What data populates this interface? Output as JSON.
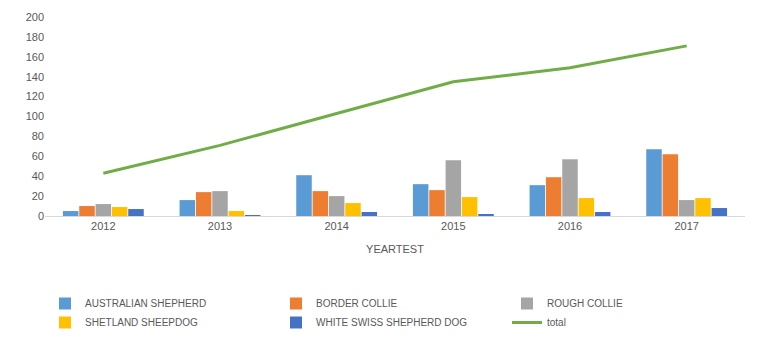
{
  "chart_data": {
    "type": "bar",
    "x_label": "YEARTEST",
    "categories": [
      "2012",
      "2013",
      "2014",
      "2015",
      "2016",
      "2017"
    ],
    "series": [
      {
        "name": "AUSTRALIAN SHEPHERD",
        "type": "bar",
        "color": "#5B9BD5",
        "values": [
          5,
          16,
          41,
          32,
          31,
          67
        ]
      },
      {
        "name": "BORDER COLLIE",
        "type": "bar",
        "color": "#ED7D31",
        "values": [
          10,
          24,
          25,
          26,
          39,
          62
        ]
      },
      {
        "name": "ROUGH COLLIE",
        "type": "bar",
        "color": "#A5A5A5",
        "values": [
          12,
          25,
          20,
          56,
          57,
          16
        ]
      },
      {
        "name": "SHETLAND SHEEPDOG",
        "type": "bar",
        "color": "#FFC000",
        "values": [
          9,
          5,
          13,
          19,
          18,
          18
        ]
      },
      {
        "name": "WHITE SWISS SHEPHERD DOG",
        "type": "bar",
        "color": "#4472C4",
        "values": [
          7,
          1,
          4,
          2,
          4,
          8
        ]
      },
      {
        "name": "total",
        "type": "line",
        "color": "#70AD47",
        "values": [
          43,
          71,
          103,
          135,
          149,
          171
        ]
      }
    ],
    "ylim": [
      0,
      200
    ],
    "yticks": [
      0,
      20,
      40,
      60,
      80,
      100,
      120,
      140,
      160,
      180,
      200
    ],
    "grid": false,
    "legend": "bottom"
  }
}
